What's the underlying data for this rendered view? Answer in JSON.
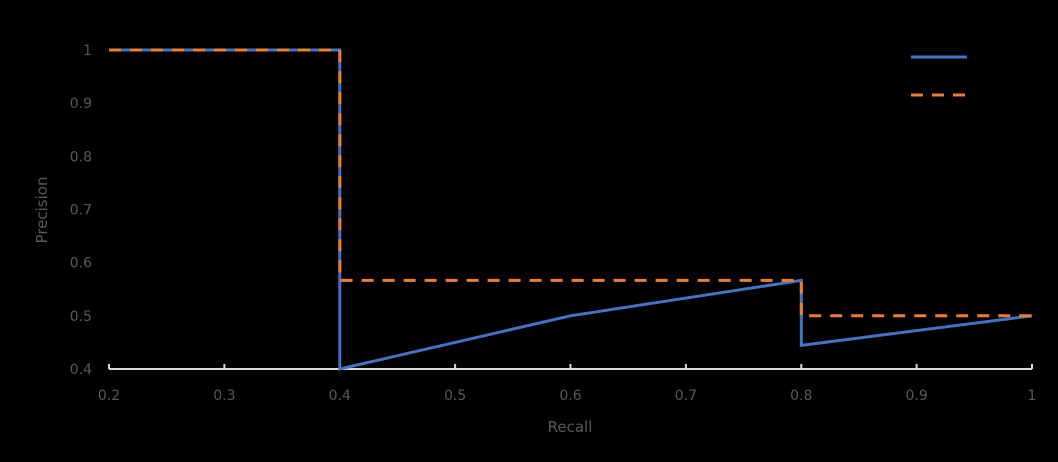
{
  "chart_data": {
    "type": "line",
    "title": "",
    "xlabel": "Recall",
    "ylabel": "Precision",
    "xlim": [
      0.2,
      1.0
    ],
    "ylim": [
      0.4,
      1.0
    ],
    "x_ticks": [
      "0.2",
      "0.3",
      "0.4",
      "0.5",
      "0.6",
      "0.7",
      "0.8",
      "0.9",
      "1"
    ],
    "y_ticks": [
      "0.4",
      "0.5",
      "0.6",
      "0.7",
      "0.8",
      "0.9",
      "1"
    ],
    "grid": false,
    "legend_position": "top-right",
    "series": [
      {
        "name": "",
        "style": "solid",
        "color": "#4472C4",
        "points": [
          [
            0.2,
            1.0
          ],
          [
            0.4,
            1.0
          ],
          [
            0.4,
            0.4
          ],
          [
            0.6,
            0.5
          ],
          [
            0.8,
            0.5667
          ],
          [
            0.8,
            0.4444
          ],
          [
            1.0,
            0.5
          ]
        ]
      },
      {
        "name": "",
        "style": "dashed",
        "color": "#ED7D31",
        "points": [
          [
            0.2,
            1.0
          ],
          [
            0.4,
            1.0
          ],
          [
            0.4,
            0.5667
          ],
          [
            0.8,
            0.5667
          ],
          [
            0.8,
            0.5
          ],
          [
            1.0,
            0.5
          ]
        ]
      }
    ]
  },
  "colors": {
    "background": "#000000",
    "axis": "#D9D9D9",
    "text": "#595959"
  }
}
